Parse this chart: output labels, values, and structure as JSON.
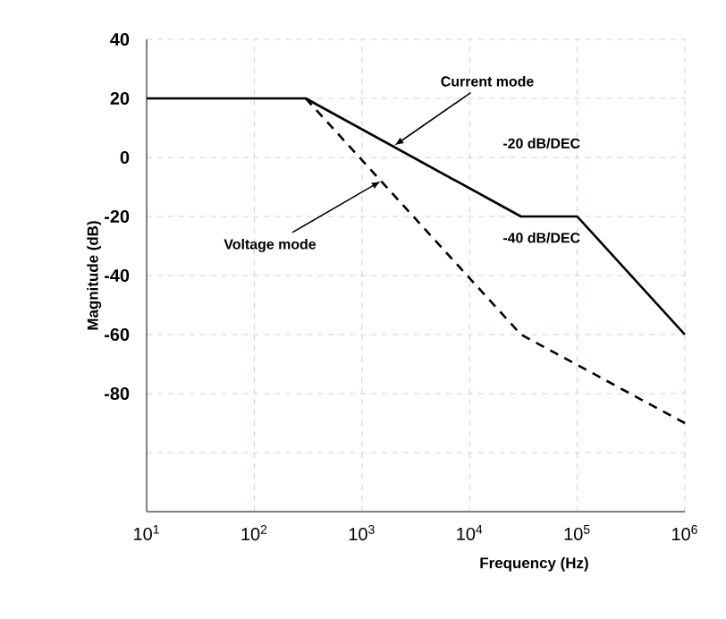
{
  "chart_data": {
    "type": "line",
    "xlabel": "Frequency (Hz)",
    "ylabel": "Magnitude (dB)",
    "log": "x",
    "grid": true,
    "xlim": [
      10,
      1000000
    ],
    "ylim": [
      -120,
      40
    ],
    "xticks": [
      {
        "value": 10,
        "label": "10$^{1}$"
      },
      {
        "value": 100,
        "label": "10$^{2}$"
      },
      {
        "value": 1000,
        "label": "10$^{3}$"
      },
      {
        "value": 10000,
        "label": "10$^{4}$"
      },
      {
        "value": 100000,
        "label": "10$^{5}$"
      },
      {
        "value": 1000000,
        "label": "10$^{6}$"
      }
    ],
    "yticks": [
      40,
      20,
      0,
      -20,
      -40,
      -60,
      -80,
      {
        "value": -100,
        "label": null
      },
      {
        "value": -120,
        "label": null
      }
    ],
    "series": [
      {
        "x": [
          10,
          300,
          30000,
          100000,
          1000000
        ],
        "values": [
          20,
          20,
          -20,
          -20,
          -60
        ],
        "color": "#000000",
        "line_style": "solid"
      },
      {
        "x": [
          300,
          30000,
          1000000
        ],
        "values": [
          20,
          -60,
          -90
        ],
        "color": "#000000",
        "line_style": "dashed"
      }
    ],
    "annotations": [
      {
        "text": "Current mode",
        "x": 2000,
        "y": 4
      },
      "-20 dB/DEC",
      "-40 dB/DEC",
      {
        "text": "Voltage mode",
        "x": 1500,
        "y": -8
      }
    ]
  }
}
